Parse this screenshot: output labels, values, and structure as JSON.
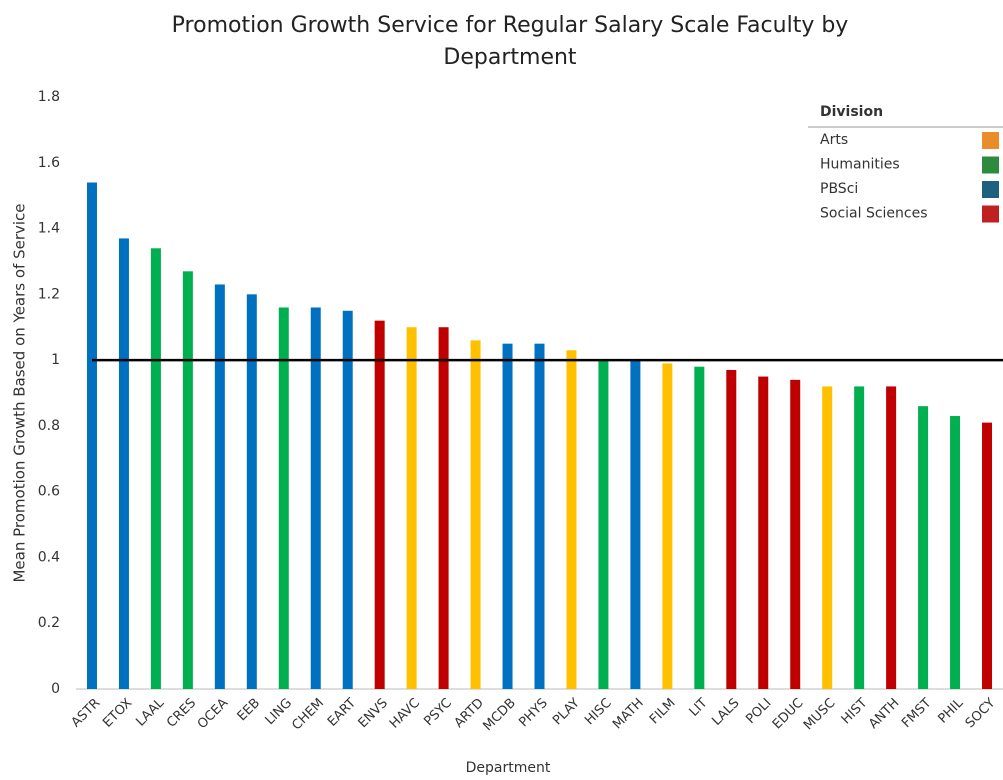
{
  "chart_data": {
    "type": "bar",
    "title": "Promotion Growth Service for Regular Salary Scale Faculty by Department",
    "x_label": "Department",
    "y_label": "Mean Promotion Growth Based on Years of Service",
    "categories": [
      "ASTR",
      "ETOX",
      "LAAL",
      "CRES",
      "OCEA",
      "EEB",
      "LING",
      "CHEM",
      "EART",
      "ENVS",
      "HAVC",
      "PSYC",
      "ARTD",
      "MCDB",
      "PHYS",
      "PLAY",
      "HISC",
      "MATH",
      "FILM",
      "LIT",
      "LALS",
      "POLI",
      "EDUC",
      "MUSC",
      "HIST",
      "ANTH",
      "FMST",
      "PHIL",
      "SOCY"
    ],
    "legend_title": "Division",
    "series": [
      {
        "name": "Arts",
        "color": "#ffc000",
        "legend_color": "#e98c2a",
        "values": [
          null,
          null,
          null,
          null,
          null,
          null,
          null,
          null,
          null,
          null,
          1.1,
          null,
          1.06,
          null,
          null,
          1.03,
          null,
          null,
          0.99,
          null,
          null,
          null,
          null,
          0.92,
          null,
          null,
          null,
          null,
          null
        ]
      },
      {
        "name": "Humanities",
        "color": "#00b050",
        "legend_color": "#2e8b3e",
        "values": [
          null,
          null,
          1.34,
          1.27,
          null,
          null,
          1.16,
          null,
          null,
          null,
          null,
          null,
          null,
          null,
          null,
          null,
          1.0,
          null,
          null,
          0.98,
          null,
          null,
          null,
          null,
          0.92,
          null,
          0.86,
          0.83,
          null
        ]
      },
      {
        "name": "PBSci",
        "color": "#0070c0",
        "legend_color": "#1f5f7f",
        "values": [
          1.54,
          1.37,
          null,
          null,
          1.23,
          1.2,
          null,
          1.16,
          1.15,
          null,
          null,
          null,
          null,
          1.05,
          1.05,
          null,
          null,
          1.0,
          null,
          null,
          null,
          null,
          null,
          null,
          null,
          null,
          null,
          null,
          null
        ]
      },
      {
        "name": "Social Sciences",
        "color": "#c00000",
        "legend_color": "#c0201f",
        "values": [
          null,
          null,
          null,
          null,
          null,
          null,
          null,
          null,
          null,
          1.12,
          null,
          1.1,
          null,
          null,
          null,
          null,
          null,
          null,
          null,
          null,
          0.97,
          0.95,
          0.94,
          null,
          null,
          0.92,
          null,
          null,
          0.81
        ]
      }
    ],
    "reference_line": 1,
    "ylim": [
      0,
      1.8
    ],
    "yticks": [
      0,
      0.2,
      0.4,
      0.6,
      0.8,
      1,
      1.2,
      1.4,
      1.6,
      1.8
    ],
    "grid": false
  }
}
